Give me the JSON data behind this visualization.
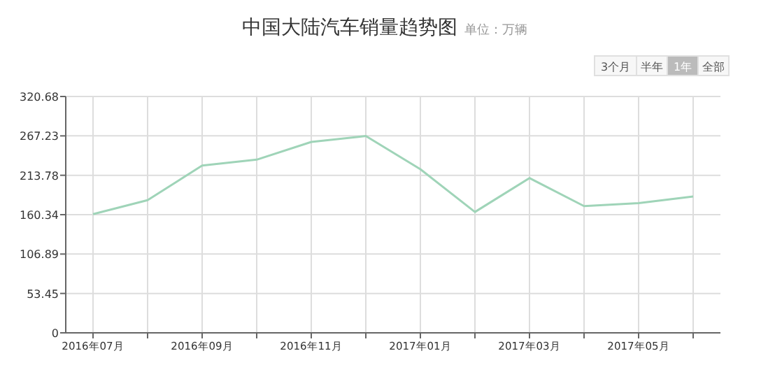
{
  "chart_data": {
    "type": "line",
    "title": "中国大陆汽车销量趋势图",
    "subtitle": "单位：万辆",
    "annotations": [
      "3个月",
      "半年",
      "1年",
      "全部"
    ],
    "categories": [
      "2016年07月",
      null,
      "2016年09月",
      null,
      "2016年11月",
      null,
      "2017年01月",
      null,
      "2017年03月",
      null,
      "2017年05月",
      null
    ],
    "series": [
      {
        "color": "#9fd4b8",
        "values": [
          161,
          180,
          227,
          235,
          259,
          267,
          222,
          164,
          210,
          172,
          176,
          185
        ]
      }
    ],
    "ylim": [
      0,
      320.68
    ],
    "yticks": [
      0,
      53.45,
      106.89,
      160.34,
      213.78,
      267.23,
      320.68
    ],
    "grid": true,
    "marker": "none",
    "line_style": "solid"
  }
}
